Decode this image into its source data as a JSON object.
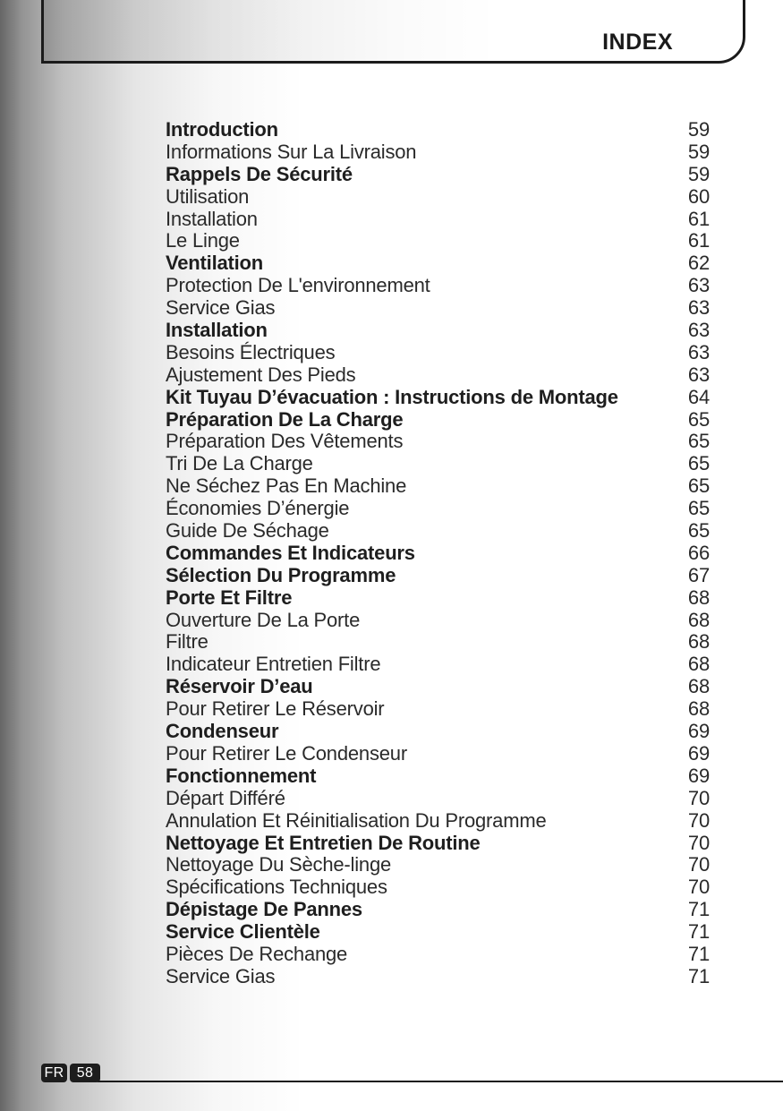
{
  "header": {
    "title": "INDEX"
  },
  "toc": {
    "entries": [
      {
        "label": "Introduction",
        "page": "59",
        "bold": true
      },
      {
        "label": "Informations Sur La Livraison",
        "page": "59",
        "bold": false
      },
      {
        "label": "Rappels De Sécurité",
        "page": "59",
        "bold": true
      },
      {
        "label": "Utilisation",
        "page": "60",
        "bold": false
      },
      {
        "label": "Installation",
        "page": "61",
        "bold": false
      },
      {
        "label": "Le Linge",
        "page": "61",
        "bold": false
      },
      {
        "label": "Ventilation",
        "page": "62",
        "bold": true
      },
      {
        "label": "Protection De L'environnement",
        "page": "63",
        "bold": false
      },
      {
        "label": "Service Gias",
        "page": "63",
        "bold": false
      },
      {
        "label": "Installation",
        "page": "63",
        "bold": true
      },
      {
        "label": "Besoins Électriques",
        "page": "63",
        "bold": false
      },
      {
        "label": "Ajustement Des Pieds",
        "page": "63",
        "bold": false
      },
      {
        "label": "Kit Tuyau D’évacuation : Instructions de Montage",
        "page": "64",
        "bold": true
      },
      {
        "label": "Préparation De La Charge",
        "page": "65",
        "bold": true
      },
      {
        "label": "Préparation Des Vêtements",
        "page": "65",
        "bold": false
      },
      {
        "label": "Tri De La Charge",
        "page": "65",
        "bold": false
      },
      {
        "label": "Ne Séchez Pas En Machine",
        "page": "65",
        "bold": false
      },
      {
        "label": "Économies D’énergie",
        "page": "65",
        "bold": false
      },
      {
        "label": "Guide De Séchage",
        "page": "65",
        "bold": false
      },
      {
        "label": "Commandes Et Indicateurs",
        "page": "66",
        "bold": true
      },
      {
        "label": "Sélection Du Programme",
        "page": "67",
        "bold": true
      },
      {
        "label": "Porte Et Filtre",
        "page": "68",
        "bold": true
      },
      {
        "label": "Ouverture De La Porte",
        "page": "68",
        "bold": false
      },
      {
        "label": "Filtre",
        "page": "68",
        "bold": false
      },
      {
        "label": "Indicateur Entretien Filtre",
        "page": "68",
        "bold": false
      },
      {
        "label": "Réservoir D’eau",
        "page": "68",
        "bold": true
      },
      {
        "label": "Pour Retirer Le Réservoir",
        "page": "68",
        "bold": false
      },
      {
        "label": "Condenseur",
        "page": "69",
        "bold": true
      },
      {
        "label": "Pour Retirer Le Condenseur",
        "page": "69",
        "bold": false
      },
      {
        "label": "Fonctionnement",
        "page": "69",
        "bold": true
      },
      {
        "label": "Départ Différé",
        "page": "70",
        "bold": false
      },
      {
        "label": "Annulation Et Réinitialisation Du Programme",
        "page": "70",
        "bold": false
      },
      {
        "label": "Nettoyage Et Entretien De Routine",
        "page": "70",
        "bold": true
      },
      {
        "label": "Nettoyage Du Sèche-linge",
        "page": "70",
        "bold": false
      },
      {
        "label": "Spécifications Techniques",
        "page": "70",
        "bold": false
      },
      {
        "label": "Dépistage De Pannes",
        "page": "71",
        "bold": true
      },
      {
        "label": "Service Clientèle",
        "page": "71",
        "bold": true
      },
      {
        "label": "Pièces De Rechange",
        "page": "71",
        "bold": false
      },
      {
        "label": "Service Gias",
        "page": "71",
        "bold": false
      }
    ]
  },
  "footer": {
    "language": "FR",
    "page_number": "58"
  }
}
